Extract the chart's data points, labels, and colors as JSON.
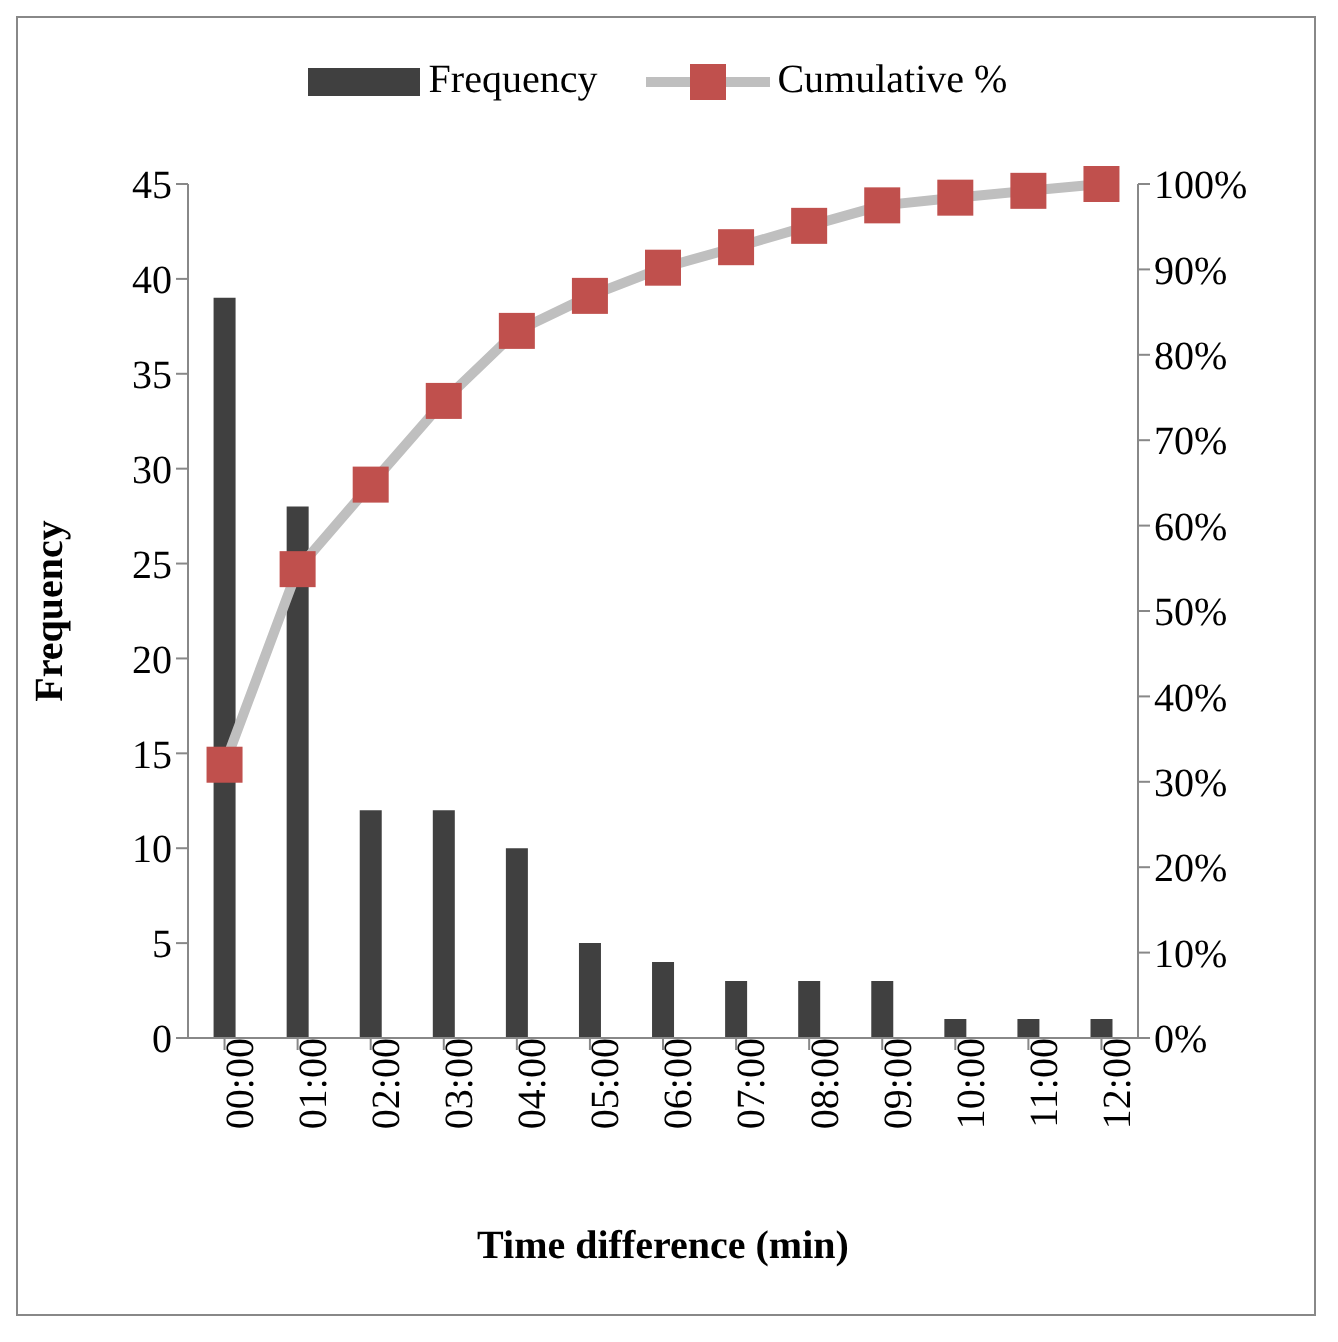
{
  "chart_data": {
    "type": "bar",
    "xlabel": "Time difference (min)",
    "ylabel": "Frequency",
    "categories": [
      "00:00",
      "01:00",
      "02:00",
      "03:00",
      "04:00",
      "05:00",
      "06:00",
      "07:00",
      "08:00",
      "09:00",
      "10:00",
      "11:00",
      "12:00"
    ],
    "series": [
      {
        "name": "Frequency",
        "color": "#404040",
        "values": [
          39,
          28,
          12,
          12,
          10,
          5,
          4,
          3,
          3,
          3,
          1,
          1,
          1
        ]
      },
      {
        "name": "Cumulative %",
        "type": "line",
        "axis": "y2",
        "color": "#bfbfbf",
        "marker": "square",
        "values": [
          32.0,
          54.9,
          64.8,
          74.6,
          82.8,
          86.9,
          90.2,
          92.6,
          95.1,
          97.5,
          98.4,
          99.2,
          100
        ]
      }
    ],
    "ylim": [
      0,
      45
    ],
    "yticks": [
      0,
      5,
      10,
      15,
      20,
      25,
      30,
      35,
      40,
      45
    ],
    "y2lim": [
      0,
      100
    ],
    "y2ticks": [
      {
        "value": 0,
        "label": "0%"
      },
      {
        "value": 10,
        "label": "10%"
      },
      {
        "value": 20,
        "label": "20%"
      },
      {
        "value": 30,
        "label": "30%"
      },
      {
        "value": 40,
        "label": "40%"
      },
      {
        "value": 50,
        "label": "50%"
      },
      {
        "value": 60,
        "label": "60%"
      },
      {
        "value": 70,
        "label": "70%"
      },
      {
        "value": 80,
        "label": "80%"
      },
      {
        "value": 90,
        "label": "90%"
      },
      {
        "value": 100,
        "label": "100%"
      }
    ],
    "grid": false,
    "legend": "top"
  }
}
